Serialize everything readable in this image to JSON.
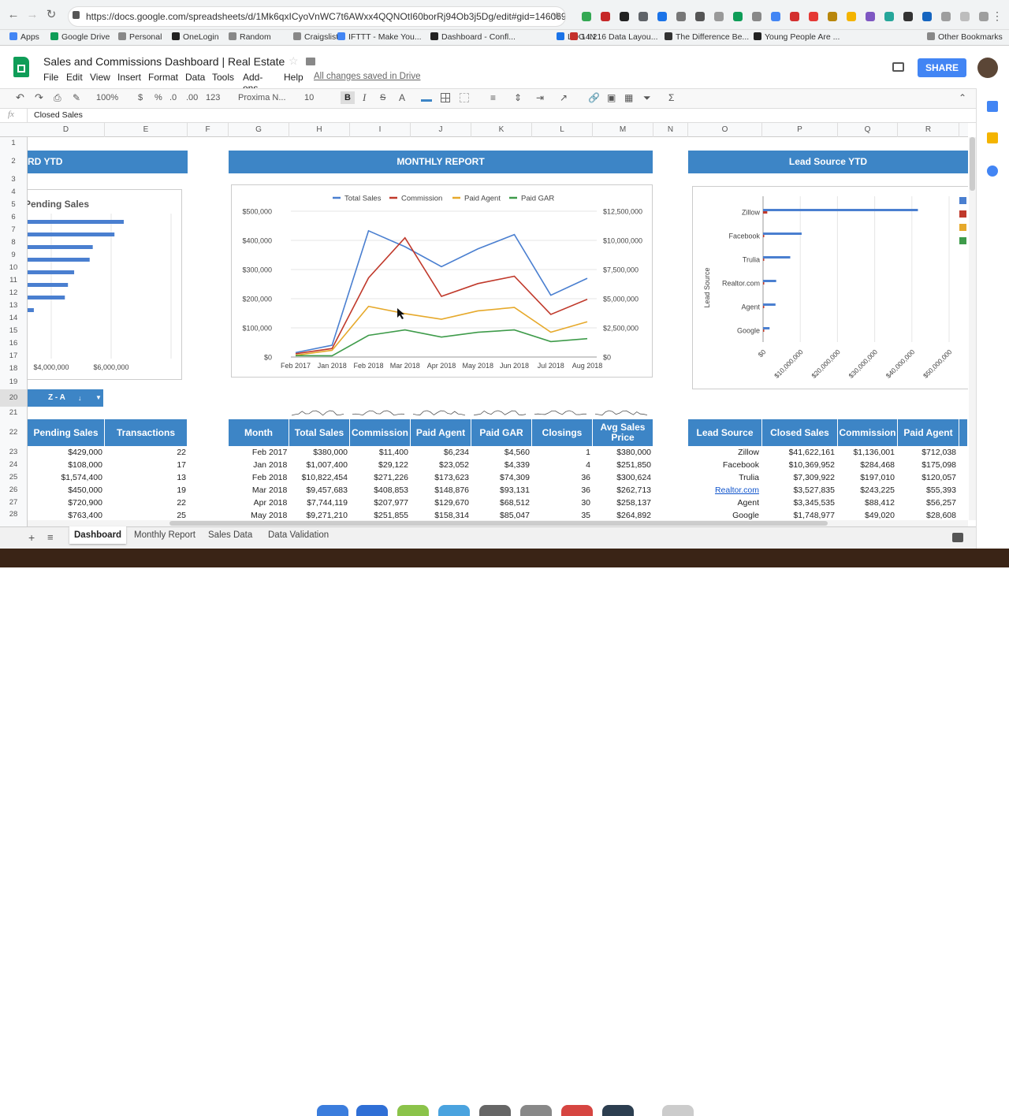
{
  "browser": {
    "url": "https://docs.google.com/spreadsheets/d/1Mk6qxICyoVnWC7t6AWxx4QQNOtI60borRj94Ob3j5Dg/edit#gid=146069..."
  },
  "bookmarks": [
    "Apps",
    "Google Drive",
    "Personal",
    "OneLogin",
    "Random",
    "Craigslist",
    "IFTTT - Make You...",
    "Dashboard - Confl...",
    "LOG IN",
    "14.216 Data Layou...",
    "The Difference Be...",
    "Young People Are ...",
    "Other Bookmarks"
  ],
  "doc": {
    "title": "Sales and Commissions Dashboard | Real Estate",
    "saved": "All changes saved in Drive",
    "share": "SHARE"
  },
  "menus": [
    "File",
    "Edit",
    "View",
    "Insert",
    "Format",
    "Data",
    "Tools",
    "Add-ons",
    "Help"
  ],
  "toolbar": {
    "zoom": "100%",
    "currency": "$",
    "percent": "%",
    "dec_less": ".0",
    "dec_more": ".00",
    "format": "123",
    "font": "Proxima N...",
    "size": "10",
    "bold": "B",
    "italic": "I",
    "strike": "S",
    "textcolor": "A"
  },
  "formula": {
    "fx": "fx",
    "value": "Closed Sales"
  },
  "columns": [
    "D",
    "E",
    "F",
    "G",
    "H",
    "I",
    "J",
    "K",
    "L",
    "M",
    "N",
    "O",
    "P",
    "Q",
    "R"
  ],
  "rows": [
    "1",
    "2",
    "3",
    "4",
    "5",
    "6",
    "7",
    "8",
    "9",
    "10",
    "11",
    "12",
    "13",
    "14",
    "15",
    "16",
    "17",
    "18",
    "19",
    "20",
    "21",
    "22",
    "23",
    "24",
    "25",
    "26",
    "27",
    "28"
  ],
  "banners": {
    "left": "RD YTD",
    "middle": "MONTHLY REPORT",
    "right": "Lead Source YTD"
  },
  "left_chart": {
    "title": "Pending Sales",
    "ticks": [
      "$4,000,000",
      "$6,000,000"
    ]
  },
  "filter_button": "Z - A",
  "left_table": {
    "headers": [
      "Pending Sales",
      "Transactions"
    ],
    "rows": [
      [
        "$429,000",
        "22"
      ],
      [
        "$108,000",
        "17"
      ],
      [
        "$1,574,400",
        "13"
      ],
      [
        "$450,000",
        "19"
      ],
      [
        "$720,900",
        "22"
      ],
      [
        "$763,400",
        "25"
      ]
    ]
  },
  "month_table": {
    "headers": [
      "Month",
      "Total Sales",
      "Commission",
      "Paid Agent",
      "Paid GAR",
      "Closings",
      "Avg Sales Price"
    ],
    "rows": [
      [
        "Feb",
        "2017",
        "$380,000",
        "$11,400",
        "$6,234",
        "$4,560",
        "1",
        "$380,000"
      ],
      [
        "Jan",
        "2018",
        "$1,007,400",
        "$29,122",
        "$23,052",
        "$4,339",
        "4",
        "$251,850"
      ],
      [
        "Feb",
        "2018",
        "$10,822,454",
        "$271,226",
        "$173,623",
        "$74,309",
        "36",
        "$300,624"
      ],
      [
        "Mar",
        "2018",
        "$9,457,683",
        "$408,853",
        "$148,876",
        "$93,131",
        "36",
        "$262,713"
      ],
      [
        "Apr",
        "2018",
        "$7,744,119",
        "$207,977",
        "$129,670",
        "$68,512",
        "30",
        "$258,137"
      ],
      [
        "May",
        "2018",
        "$9,271,210",
        "$251,855",
        "$158,314",
        "$85,047",
        "35",
        "$264,892"
      ]
    ]
  },
  "lead_table": {
    "headers": [
      "Lead Source",
      "Closed Sales",
      "Commission",
      "Paid Agent"
    ],
    "rows": [
      [
        "Zillow",
        "$41,622,161",
        "$1,136,001",
        "$712,038"
      ],
      [
        "Facebook",
        "$10,369,952",
        "$284,468",
        "$175,098"
      ],
      [
        "Trulia",
        "$7,309,922",
        "$197,010",
        "$120,057"
      ],
      [
        "Realtor.com",
        "$3,527,835",
        "$243,225",
        "$55,393"
      ],
      [
        "Agent",
        "$3,345,535",
        "$88,412",
        "$56,257"
      ],
      [
        "Google",
        "$1,748,977",
        "$49,020",
        "$28,608"
      ]
    ]
  },
  "sheet_tabs": [
    "Dashboard",
    "Monthly Report",
    "Sales Data",
    "Data Validation"
  ],
  "chart_data": [
    {
      "type": "line",
      "title": "",
      "legend": [
        "Total Sales",
        "Commission",
        "Paid Agent",
        "Paid GAR"
      ],
      "legend_position": "top",
      "categories": [
        "Feb 2017",
        "Jan 2018",
        "Feb 2018",
        "Mar 2018",
        "Apr 2018",
        "May 2018",
        "Jun 2018",
        "Jul 2018",
        "Aug 2018"
      ],
      "left_axis": {
        "ticks": [
          "$0",
          "$100,000",
          "$200,000",
          "$300,000",
          "$400,000",
          "$500,000"
        ],
        "range": [
          0,
          500000
        ]
      },
      "right_axis": {
        "ticks": [
          "$0",
          "$2,500,000",
          "$5,000,000",
          "$7,500,000",
          "$10,000,000",
          "$12,500,000"
        ],
        "range": [
          0,
          12500000
        ]
      },
      "series": [
        {
          "name": "Total Sales",
          "axis": "right",
          "color": "#4a7fd0",
          "values": [
            380000,
            1007400,
            10822454,
            9457683,
            7744119,
            9271210,
            10500000,
            5300000,
            6750000
          ]
        },
        {
          "name": "Commission",
          "axis": "left",
          "color": "#c0392b",
          "values": [
            11400,
            29122,
            271226,
            408853,
            207977,
            251855,
            277000,
            146000,
            198000
          ]
        },
        {
          "name": "Paid Agent",
          "axis": "left",
          "color": "#e6a92b",
          "values": [
            6234,
            23052,
            173623,
            148876,
            129670,
            158314,
            170000,
            85000,
            121000
          ]
        },
        {
          "name": "Paid GAR",
          "axis": "left",
          "color": "#3e9b4a",
          "values": [
            4560,
            4339,
            74309,
            93131,
            68512,
            85047,
            93000,
            53000,
            63000
          ]
        }
      ]
    },
    {
      "type": "bar",
      "orientation": "horizontal",
      "ylabel": "Lead Source",
      "categories": [
        "Zillow",
        "Facebook",
        "Trulia",
        "Realtor.com",
        "Agent",
        "Google"
      ],
      "x_ticks": [
        "$0",
        "$10,000,000",
        "$20,000,000",
        "$30,000,000",
        "$40,000,000",
        "$50,000,000"
      ],
      "xlim": [
        0,
        50000000
      ],
      "series": [
        {
          "name": "",
          "color": "#4a7fd0",
          "values": [
            41622161,
            10369952,
            7309922,
            3527835,
            3345535,
            1748977
          ]
        },
        {
          "name": "",
          "color": "#c0392b",
          "values": [
            1136001,
            284468,
            197010,
            243225,
            88412,
            49020
          ]
        }
      ]
    },
    {
      "type": "bar",
      "orientation": "horizontal",
      "title": "Pending Sales",
      "x_ticks": [
        "$4,000,000",
        "$6,000,000"
      ],
      "values": [
        6300000,
        6000000,
        5300000,
        5200000,
        4700000,
        4500000,
        4400000,
        3400000
      ]
    }
  ],
  "colors": {
    "accent": "#3d85c6",
    "sheets_green": "#0f9d58",
    "share": "#4285f4"
  }
}
